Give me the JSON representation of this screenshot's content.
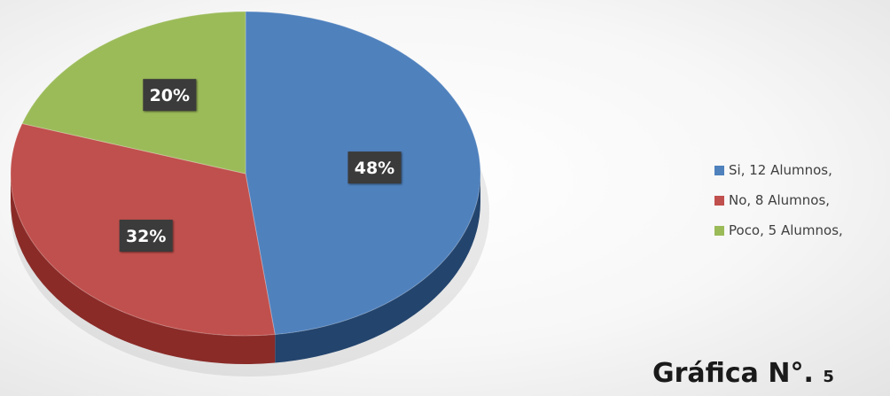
{
  "chart_data": {
    "type": "pie",
    "style": "3d",
    "categories": [
      "Si",
      "No",
      "Poco"
    ],
    "values": [
      12,
      8,
      5
    ],
    "percent_labels": [
      "48%",
      "32%",
      "20%"
    ],
    "colors": [
      "#4F81BD",
      "#C0504D",
      "#9BBB59"
    ],
    "side_colors": [
      "#23446d",
      "#8a2b28",
      "#5f7a2c"
    ],
    "legend_placement": "right",
    "legend": [
      {
        "label": "Si, 12 Alumnos,",
        "color": "#4F81BD"
      },
      {
        "label": "No, 8 Alumnos,",
        "color": "#C0504D"
      },
      {
        "label": "Poco, 5 Alumnos,",
        "color": "#9BBB59"
      }
    ]
  },
  "caption": {
    "text": "Gráfica N°.",
    "number": "5"
  }
}
